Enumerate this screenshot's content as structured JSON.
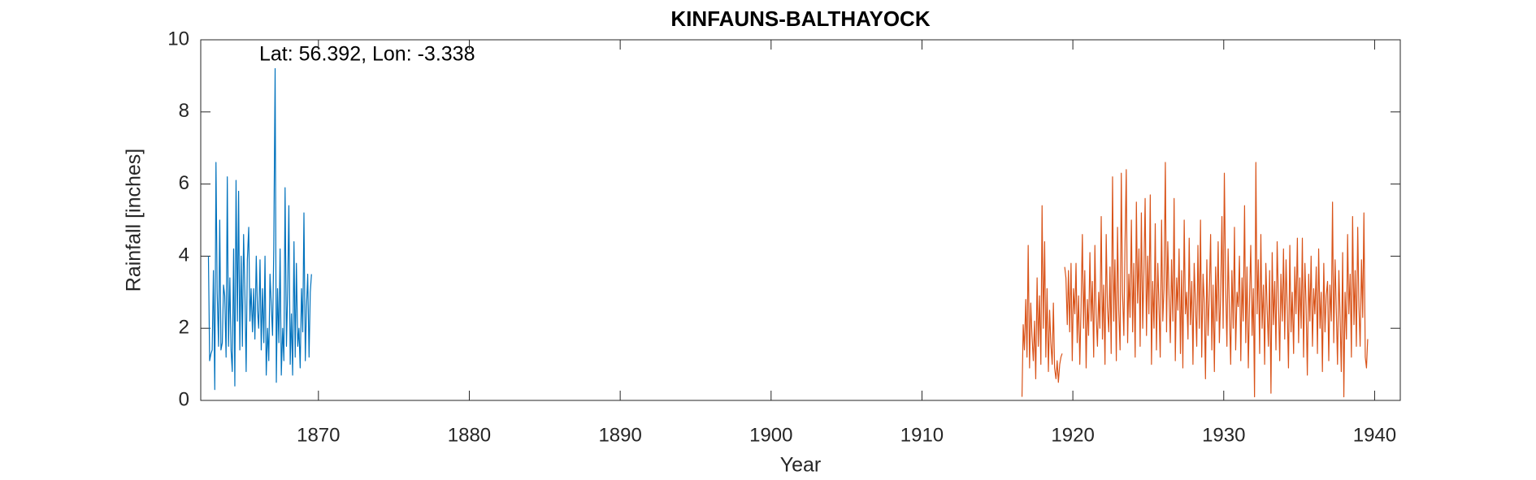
{
  "chart_data": {
    "type": "line",
    "title": "KINFAUNS-BALTHAYOCK",
    "annotation": "Lat: 56.392, Lon: -3.338",
    "xlabel": "Year",
    "ylabel": "Rainfall [inches]",
    "xlim": [
      1862.2,
      1941.7
    ],
    "xticks": [
      1870,
      1880,
      1890,
      1900,
      1910,
      1920,
      1930,
      1940
    ],
    "ylim": [
      0,
      10
    ],
    "yticks": [
      0,
      2,
      4,
      6,
      8,
      10
    ],
    "grid": false,
    "series": [
      {
        "color": "#0072BD",
        "x": [
          1862.71,
          1862.79,
          1862.88,
          1862.96,
          1863.04,
          1863.13,
          1863.21,
          1863.29,
          1863.38,
          1863.46,
          1863.54,
          1863.63,
          1863.71,
          1863.79,
          1863.88,
          1863.96,
          1864.04,
          1864.13,
          1864.21,
          1864.29,
          1864.38,
          1864.46,
          1864.54,
          1864.63,
          1864.71,
          1864.79,
          1864.88,
          1864.96,
          1865.04,
          1865.13,
          1865.21,
          1865.29,
          1865.38,
          1865.46,
          1865.54,
          1865.63,
          1865.71,
          1865.79,
          1865.88,
          1865.96,
          1866.04,
          1866.13,
          1866.21,
          1866.29,
          1866.38,
          1866.46,
          1866.54,
          1866.63,
          1866.71,
          1866.79,
          1866.88,
          1866.96,
          1867.04,
          1867.13,
          1867.21,
          1867.29,
          1867.38,
          1867.46,
          1867.54,
          1867.63,
          1867.71,
          1867.79,
          1867.88,
          1867.96,
          1868.04,
          1868.13,
          1868.21,
          1868.29,
          1868.38,
          1868.46,
          1868.54,
          1868.63,
          1868.71,
          1868.79,
          1868.88,
          1868.96,
          1869.04,
          1869.13,
          1869.21,
          1869.29,
          1869.38,
          1869.46,
          1869.54
        ],
        "values": [
          4.0,
          1.1,
          1.3,
          1.4,
          3.6,
          0.3,
          6.6,
          3.0,
          1.5,
          5.0,
          1.4,
          1.6,
          3.2,
          2.9,
          1.2,
          6.2,
          1.5,
          3.4,
          1.4,
          0.8,
          4.2,
          0.4,
          6.1,
          2.2,
          5.8,
          1.4,
          4.0,
          1.5,
          4.6,
          2.9,
          0.8,
          3.9,
          4.8,
          2.2,
          3.1,
          1.9,
          3.1,
          1.7,
          4.0,
          2.5,
          2.0,
          3.9,
          1.4,
          3.1,
          1.6,
          4.0,
          0.7,
          2.0,
          1.1,
          3.5,
          2.6,
          1.8,
          4.2,
          9.2,
          0.5,
          3.1,
          1.6,
          4.2,
          0.7,
          2.0,
          1.1,
          5.9,
          1.5,
          3.0,
          5.4,
          1.0,
          2.4,
          0.7,
          4.4,
          1.2,
          3.8,
          1.5,
          2.0,
          0.9,
          3.1,
          1.9,
          5.2,
          1.1,
          2.6,
          3.5,
          1.2,
          3.0,
          3.5
        ]
      },
      {
        "color": "#D95319",
        "x": [
          1916.63,
          1916.71,
          1916.79,
          1916.88,
          1916.96,
          1917.04,
          1917.13,
          1917.21,
          1917.29,
          1917.38,
          1917.46,
          1917.54,
          1917.63,
          1917.71,
          1917.79,
          1917.88,
          1917.96,
          1918.04,
          1918.13,
          1918.21,
          1918.29,
          1918.38,
          1918.46,
          1918.54,
          1918.63,
          1918.71,
          1918.79,
          1918.88,
          1918.96,
          1919.04,
          1919.13,
          1919.21,
          1919.29,
          1919.38,
          1919.46,
          1919.54,
          1919.63,
          1919.71,
          1919.79,
          1919.88,
          1919.96,
          1920.04,
          1920.13,
          1920.21,
          1920.29,
          1920.38,
          1920.46,
          1920.54,
          1920.63,
          1920.71,
          1920.79,
          1920.88,
          1920.96,
          1921.04,
          1921.13,
          1921.21,
          1921.29,
          1921.38,
          1921.46,
          1921.54,
          1921.63,
          1921.71,
          1921.79,
          1921.88,
          1921.96,
          1922.04,
          1922.13,
          1922.21,
          1922.29,
          1922.38,
          1922.46,
          1922.54,
          1922.63,
          1922.71,
          1922.79,
          1922.88,
          1922.96,
          1923.04,
          1923.13,
          1923.21,
          1923.29,
          1923.38,
          1923.46,
          1923.54,
          1923.63,
          1923.71,
          1923.79,
          1923.88,
          1923.96,
          1924.04,
          1924.13,
          1924.21,
          1924.29,
          1924.38,
          1924.46,
          1924.54,
          1924.63,
          1924.71,
          1924.79,
          1924.88,
          1924.96,
          1925.04,
          1925.13,
          1925.21,
          1925.29,
          1925.38,
          1925.46,
          1925.54,
          1925.63,
          1925.71,
          1925.79,
          1925.88,
          1925.96,
          1926.04,
          1926.13,
          1926.21,
          1926.29,
          1926.38,
          1926.46,
          1926.54,
          1926.63,
          1926.71,
          1926.79,
          1926.88,
          1926.96,
          1927.04,
          1927.13,
          1927.21,
          1927.29,
          1927.38,
          1927.46,
          1927.54,
          1927.63,
          1927.71,
          1927.79,
          1927.88,
          1927.96,
          1928.04,
          1928.13,
          1928.21,
          1928.29,
          1928.38,
          1928.46,
          1928.54,
          1928.63,
          1928.71,
          1928.79,
          1928.88,
          1928.96,
          1929.04,
          1929.13,
          1929.21,
          1929.29,
          1929.38,
          1929.46,
          1929.54,
          1929.63,
          1929.71,
          1929.79,
          1929.88,
          1929.96,
          1930.04,
          1930.13,
          1930.21,
          1930.29,
          1930.38,
          1930.46,
          1930.54,
          1930.63,
          1930.71,
          1930.79,
          1930.88,
          1930.96,
          1931.04,
          1931.13,
          1931.21,
          1931.29,
          1931.38,
          1931.46,
          1931.54,
          1931.63,
          1931.71,
          1931.79,
          1931.88,
          1931.96,
          1932.04,
          1932.13,
          1932.21,
          1932.29,
          1932.38,
          1932.46,
          1932.54,
          1932.63,
          1932.71,
          1932.79,
          1932.88,
          1932.96,
          1933.04,
          1933.13,
          1933.21,
          1933.29,
          1933.38,
          1933.46,
          1933.54,
          1933.63,
          1933.71,
          1933.79,
          1933.88,
          1933.96,
          1934.04,
          1934.13,
          1934.21,
          1934.29,
          1934.38,
          1934.46,
          1934.54,
          1934.63,
          1934.71,
          1934.79,
          1934.88,
          1934.96,
          1935.04,
          1935.13,
          1935.21,
          1935.29,
          1935.38,
          1935.46,
          1935.54,
          1935.63,
          1935.71,
          1935.79,
          1935.88,
          1935.96,
          1936.04,
          1936.13,
          1936.21,
          1936.29,
          1936.38,
          1936.46,
          1936.54,
          1936.63,
          1936.71,
          1936.79,
          1936.88,
          1936.96,
          1937.04,
          1937.13,
          1937.21,
          1937.29,
          1937.38,
          1937.46,
          1937.54,
          1937.63,
          1937.71,
          1937.79,
          1937.88,
          1937.96,
          1938.04,
          1938.13,
          1938.21,
          1938.29,
          1938.38,
          1938.46,
          1938.54,
          1938.63,
          1938.71,
          1938.79,
          1938.88,
          1938.96,
          1939.04,
          1939.13,
          1939.21,
          1939.29,
          1939.38,
          1939.46,
          1939.54
        ],
        "values": [
          0.1,
          2.1,
          1.4,
          2.8,
          1.2,
          4.3,
          0.9,
          2.7,
          1.8,
          1.1,
          2.2,
          0.6,
          3.4,
          1.5,
          2.9,
          1.0,
          5.4,
          2.0,
          4.4,
          1.2,
          3.1,
          0.8,
          2.5,
          1.6,
          1.0,
          2.7,
          0.9,
          0.6,
          1.1,
          0.5,
          1.0,
          1.2,
          1.3,
          null,
          3.7,
          3.4,
          2.1,
          3.6,
          1.9,
          3.8,
          1.1,
          3.1,
          2.4,
          3.8,
          1.6,
          2.9,
          1.0,
          2.5,
          4.6,
          2.0,
          3.6,
          0.9,
          2.8,
          1.8,
          4.1,
          2.2,
          3.3,
          1.2,
          4.3,
          2.4,
          1.5,
          3.0,
          2.0,
          5.1,
          1.7,
          3.2,
          1.0,
          4.6,
          2.6,
          1.9,
          3.7,
          1.3,
          6.2,
          2.2,
          3.9,
          1.1,
          4.8,
          2.5,
          1.4,
          6.3,
          3.0,
          1.8,
          4.4,
          6.4,
          1.6,
          3.5,
          2.3,
          5.0,
          1.9,
          3.8,
          1.2,
          5.5,
          2.7,
          4.2,
          1.5,
          5.2,
          2.0,
          3.6,
          5.6,
          1.8,
          4.0,
          2.4,
          5.7,
          1.0,
          3.3,
          2.0,
          4.9,
          1.4,
          3.8,
          2.6,
          1.2,
          5.0,
          2.2,
          3.1,
          6.6,
          1.9,
          4.4,
          2.8,
          1.6,
          3.9,
          2.2,
          5.6,
          1.1,
          3.4,
          2.5,
          4.2,
          1.3,
          3.6,
          0.9,
          5.0,
          2.4,
          3.0,
          1.7,
          4.5,
          2.1,
          3.3,
          1.0,
          3.8,
          2.6,
          1.5,
          4.3,
          2.0,
          5.0,
          1.2,
          3.5,
          2.7,
          0.6,
          3.9,
          1.8,
          2.9,
          4.6,
          1.4,
          3.2,
          0.8,
          3.7,
          2.2,
          4.4,
          1.6,
          2.8,
          5.1,
          2.0,
          6.3,
          3.1,
          1.5,
          4.2,
          2.4,
          1.0,
          3.6,
          2.0,
          4.8,
          1.4,
          3.0,
          2.6,
          4.0,
          1.1,
          3.4,
          2.2,
          5.4,
          1.6,
          3.7,
          0.9,
          2.8,
          4.3,
          1.8,
          3.1,
          0.1,
          6.6,
          2.4,
          3.9,
          1.3,
          4.6,
          2.0,
          3.2,
          1.0,
          3.8,
          2.5,
          1.5,
          3.6,
          0.2,
          4.1,
          2.1,
          3.3,
          1.4,
          4.4,
          2.7,
          1.1,
          3.5,
          2.2,
          4.2,
          1.7,
          3.9,
          2.5,
          0.9,
          4.3,
          1.9,
          3.0,
          1.3,
          3.7,
          2.4,
          4.5,
          1.6,
          3.4,
          2.0,
          4.5,
          1.2,
          3.8,
          2.6,
          0.7,
          3.5,
          2.2,
          4.0,
          1.5,
          3.1,
          2.4,
          3.7,
          1.3,
          4.2,
          2.0,
          3.0,
          0.8,
          3.8,
          1.9,
          2.9,
          3.3,
          1.1,
          3.2,
          2.2,
          5.5,
          1.6,
          3.9,
          2.5,
          1.0,
          3.6,
          2.3,
          0.8,
          4.1,
          0.1,
          3.0,
          1.7,
          4.6,
          2.4,
          3.5,
          1.2,
          5.1,
          2.1,
          3.6,
          1.5,
          4.8,
          2.6,
          1.5,
          3.9,
          2.3,
          5.2,
          1.2,
          0.9,
          1.7
        ]
      }
    ]
  }
}
